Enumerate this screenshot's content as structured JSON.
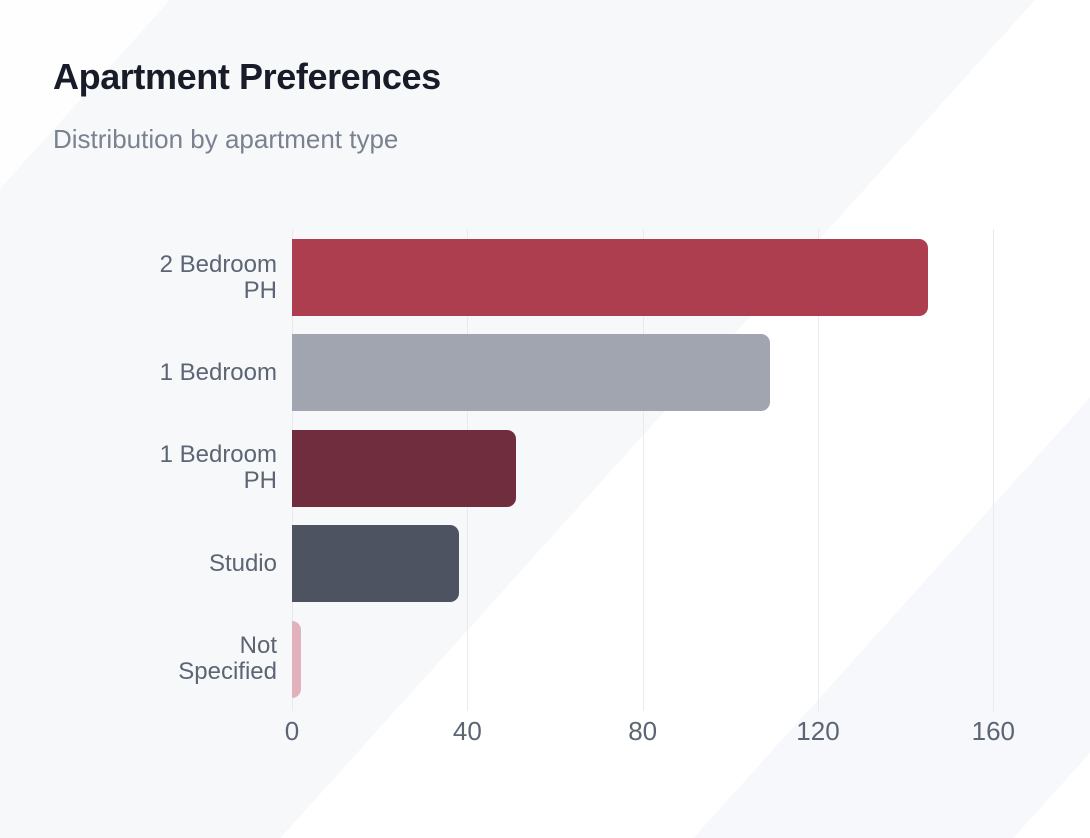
{
  "header": {
    "title": "Apartment Preferences",
    "subtitle": "Distribution by apartment type"
  },
  "chart_data": {
    "type": "bar",
    "orientation": "horizontal",
    "title": "Apartment Preferences",
    "subtitle": "Distribution by apartment type",
    "categories": [
      "2 Bedroom PH",
      "1 Bedroom",
      "1 Bedroom PH",
      "Studio",
      "Not Specified"
    ],
    "values": [
      145,
      109,
      51,
      38,
      2
    ],
    "bar_colors": [
      "#ad3e4f",
      "#a0a5b0",
      "#6f2d3e",
      "#4d5361",
      "#e2b2bc"
    ],
    "xlabel": "",
    "ylabel": "",
    "xticks": [
      0,
      40,
      80,
      120,
      160
    ],
    "xlim": [
      0,
      175
    ],
    "grid": true,
    "legend": false
  },
  "colors": {
    "title_text": "#171c28",
    "subtitle_text": "#7a8290",
    "axis_text": "#5c6574",
    "gridline": "#e8eaee",
    "background": "#ffffff"
  }
}
